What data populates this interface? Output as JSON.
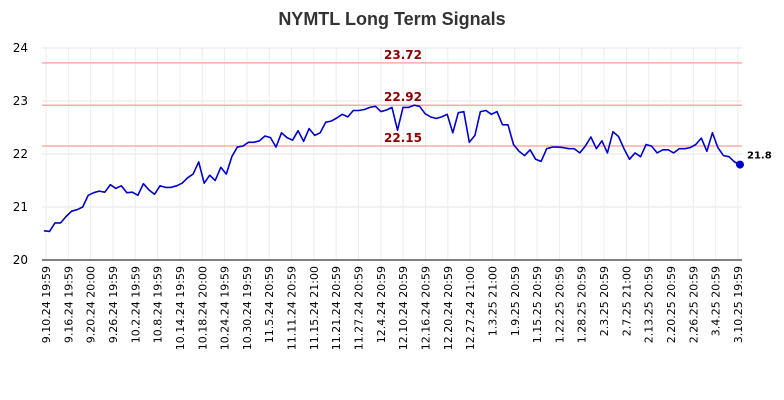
{
  "chart_data": {
    "type": "line",
    "title": "NYMTL Long Term Signals",
    "xlabel": "",
    "ylabel": "",
    "ylim": [
      20,
      24
    ],
    "y_ticks": [
      20,
      21,
      22,
      23,
      24
    ],
    "grid": true,
    "line_color": "#0000cc",
    "level_color": "#ffaaaa",
    "level_label_color": "#8b0000",
    "levels": [
      {
        "value": 23.72,
        "label": "23.72"
      },
      {
        "value": 22.92,
        "label": "22.92"
      },
      {
        "value": 22.15,
        "label": "22.15"
      }
    ],
    "x_tick_labels": [
      "9.10.24 19:59",
      "9.16.24 19:59",
      "9.20.24 20:00",
      "9.26.24 19:59",
      "10.2.24 19:59",
      "10.8.24 19:59",
      "10.14.24 19:59",
      "10.18.24 20:00",
      "10.24.24 19:59",
      "10.30.24 19:59",
      "11.5.24 20:59",
      "11.11.24 20:59",
      "11.15.24 21:00",
      "11.21.24 20:59",
      "11.27.24 20:59",
      "12.4.24 20:59",
      "12.10.24 20:59",
      "12.16.24 20:59",
      "12.20.24 20:59",
      "12.27.24 21:00",
      "1.3.25 21:00",
      "1.9.25 20:59",
      "1.15.25 20:59",
      "1.22.25 20:59",
      "1.28.25 20:59",
      "2.3.25 20:59",
      "2.7.25 21:00",
      "2.13.25 20:59",
      "2.20.25 20:59",
      "2.26.25 20:59",
      "3.4.25 20:59",
      "3.10.25 19:59"
    ],
    "last_value_label": "21.8",
    "values": [
      20.55,
      20.54,
      20.7,
      20.7,
      20.82,
      20.92,
      20.95,
      21.0,
      21.22,
      21.27,
      21.3,
      21.28,
      21.42,
      21.35,
      21.4,
      21.27,
      21.28,
      21.22,
      21.44,
      21.32,
      21.24,
      21.4,
      21.37,
      21.37,
      21.4,
      21.45,
      21.55,
      21.62,
      21.85,
      21.45,
      21.6,
      21.5,
      21.75,
      21.62,
      21.95,
      22.13,
      22.15,
      22.22,
      22.22,
      22.25,
      22.34,
      22.31,
      22.13,
      22.4,
      22.31,
      22.26,
      22.44,
      22.24,
      22.48,
      22.35,
      22.4,
      22.6,
      22.62,
      22.68,
      22.75,
      22.7,
      22.82,
      22.82,
      22.84,
      22.88,
      22.9,
      22.8,
      22.83,
      22.88,
      22.45,
      22.88,
      22.88,
      22.92,
      22.9,
      22.76,
      22.7,
      22.67,
      22.7,
      22.75,
      22.4,
      22.78,
      22.8,
      22.22,
      22.35,
      22.8,
      22.82,
      22.75,
      22.8,
      22.55,
      22.55,
      22.18,
      22.05,
      21.97,
      22.08,
      21.9,
      21.86,
      22.1,
      22.13,
      22.13,
      22.12,
      22.1,
      22.1,
      22.02,
      22.15,
      22.32,
      22.1,
      22.25,
      22.02,
      22.42,
      22.33,
      22.1,
      21.9,
      22.02,
      21.95,
      22.18,
      22.15,
      22.02,
      22.08,
      22.08,
      22.02,
      22.1,
      22.1,
      22.12,
      22.18,
      22.3,
      22.05,
      22.4,
      22.12,
      21.97,
      21.95,
      21.85,
      21.8
    ]
  }
}
